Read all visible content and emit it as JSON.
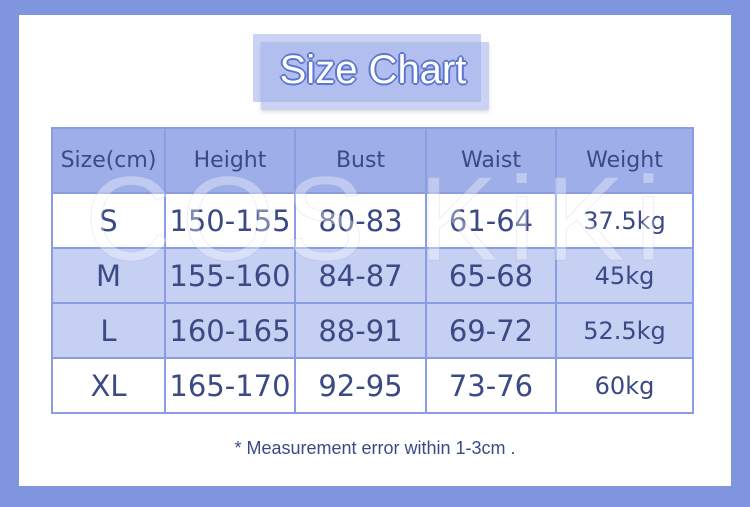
{
  "title": "Size Chart",
  "watermark": "COS KiKi",
  "table": {
    "headers": [
      "Size(cm)",
      "Height",
      "Bust",
      "Waist",
      "Weight"
    ],
    "rows": [
      [
        "S",
        "150-155",
        "80-83",
        "61-64",
        "37.5kg"
      ],
      [
        "M",
        "155-160",
        "84-87",
        "65-68",
        "45kg"
      ],
      [
        "L",
        "160-165",
        "88-91",
        "69-72",
        "52.5kg"
      ],
      [
        "XL",
        "165-170",
        "92-95",
        "73-76",
        "60kg"
      ]
    ]
  },
  "note": "*  Measurement error within 1-3cm .",
  "colors": {
    "frame": "#7f95dd",
    "header": "#9eaee9",
    "alt_row": "#c6d0f3",
    "text": "#3b4a85"
  }
}
